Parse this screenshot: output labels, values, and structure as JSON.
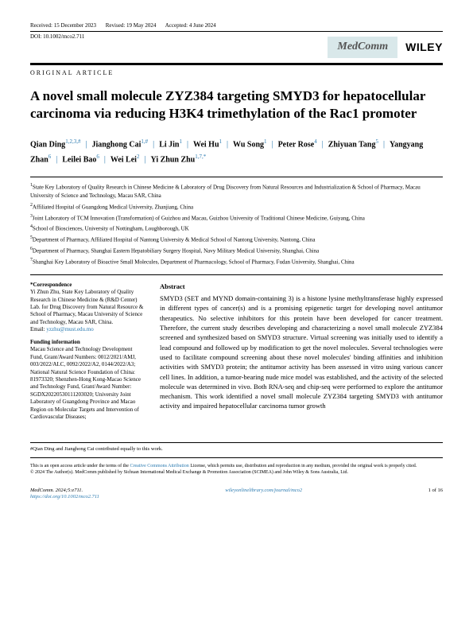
{
  "header": {
    "received": "Received: 15 December 2023",
    "revised": "Revised: 19 May 2024",
    "accepted": "Accepted: 4 June 2024",
    "doi": "DOI: 10.1002/mco2.711"
  },
  "brands": {
    "medcomm": "MedComm",
    "wiley": "WILEY"
  },
  "label": "ORIGINAL ARTICLE",
  "title": "A novel small molecule ZYZ384 targeting SMYD3 for hepatocellular carcinoma via reducing H3K4 trimethylation of the Rac1 promoter",
  "authors": [
    {
      "name": "Qian Ding",
      "sup": "1,2,3,#"
    },
    {
      "name": "Jianghong Cai",
      "sup": "1,#"
    },
    {
      "name": "Li Jin",
      "sup": "1"
    },
    {
      "name": "Wei Hu",
      "sup": "1"
    },
    {
      "name": "Wu Song",
      "sup": "1"
    },
    {
      "name": "Peter Rose",
      "sup": "4"
    },
    {
      "name": "Zhiyuan Tang",
      "sup": "5"
    },
    {
      "name": "Yangyang Zhan",
      "sup": "6"
    },
    {
      "name": "Leilei Bao",
      "sup": "6"
    },
    {
      "name": "Wei Lei",
      "sup": "2"
    },
    {
      "name": "Yi Zhun Zhu",
      "sup": "1,7,*"
    }
  ],
  "affiliations": [
    "State Key Laboratory of Quality Research in Chinese Medicine & Laboratory of Drug Discovery from Natural Resources and Industrialization & School of Pharmacy, Macau University of Science and Technology, Macau SAR, China",
    "Affiliated Hospital of Guangdong Medical University, Zhanjiang, China",
    "Joint Laboratory of TCM Innovation (Transformation) of Guizhou and Macau, Guizhou University of Traditional Chinese Medicine, Guiyang, China",
    "School of Biosciences, University of Nottingham, Loughborough, UK",
    "Department of Pharmacy, Affiliated Hospital of Nantong University & Medical School of Nantong University, Nantong, China",
    "Department of Pharmacy, Shanghai Eastern Hepatobiliary Surgery Hospital, Navy Military Medical University, Shanghai, China",
    "Shanghai Key Laboratory of Bioactive Small Molecules, Department of Pharmacology, School of Pharmacy, Fudan University, Shanghai, China"
  ],
  "correspondence": {
    "label": "*Correspondence",
    "text": "Yi Zhun Zhu, State Key Laboratory of Quality Research in Chinese Medicine & (R&D Center) Lab. for Drug Discovery from Natural Resource & School of Pharmacy, Macau University of Science and Technology, Macau SAR, China.",
    "email_label": "Email: ",
    "email": "yzzhu@must.edu.mo"
  },
  "funding": {
    "label": "Funding information",
    "text": "Macau Science and Technology Development Fund, Grant/Award Numbers: 0012/2021/AMJ, 003/2022/ALC, 0092/2022/A2, 0144/2022/A3; National Natural Science Foundation of China: 81973320; Shenzhen-Hong Kong-Macao Science and Technology Fund, Grant/Award Number: SGDX20220530111203020; University Joint Laboratory of Guangdong Province and Macao Region on Molecular Targets and Intervention of Cardiovascular Diseases;"
  },
  "abstract": {
    "label": "Abstract",
    "text": "SMYD3 (SET and MYND domain-containing 3) is a histone lysine methyltransferase highly expressed in different types of cancer(s) and is a promising epigenetic target for developing novel antitumor therapeutics. No selective inhibitors for this protein have been developed for cancer treatment. Therefore, the current study describes developing and characterizing a novel small molecule ZYZ384 screened and synthesized based on SMYD3 structure. Virtual screening was initially used to identify a lead compound and followed up by modification to get the novel molecules. Several technologies were used to facilitate compound screening about these novel molecules' binding affinities and inhibition activities with SMYD3 protein; the antitumor activity has been assessed in vitro using various cancer cell lines. In addition, a tumor-bearing nude mice model was established, and the activity of the selected molecule was determined in vivo. Both RNA-seq and chip-seq were performed to explore the antitumor mechanism. This work identified a novel small molecule ZYZ384 targeting SMYD3 with antitumor activity and impaired hepatocellular carcinoma tumor growth"
  },
  "footnote": {
    "contrib": "#Qian Ding and Jianghong Cai contributed equally to this work.",
    "license_pre": "This is an open access article under the terms of the ",
    "license_link": "Creative Commons Attribution",
    "license_post": " License, which permits use, distribution and reproduction in any medium, provided the original work is properly cited.",
    "copyright": "© 2024 The Author(s). MedComm published by Sichuan International Medical Exchange & Promotion Association (SCIMEA) and John Wiley & Sons Australia, Ltd."
  },
  "footer": {
    "left": "MedComm. 2024;5:e711.",
    "mid": "wileyonlinelibrary.com/journal/mco2",
    "right": "1 of 16",
    "doi": "https://doi.org/10.1002/mco2.711"
  },
  "colors": {
    "link": "#2a7ab0",
    "medcomm_bg": "#d9e8ea"
  }
}
